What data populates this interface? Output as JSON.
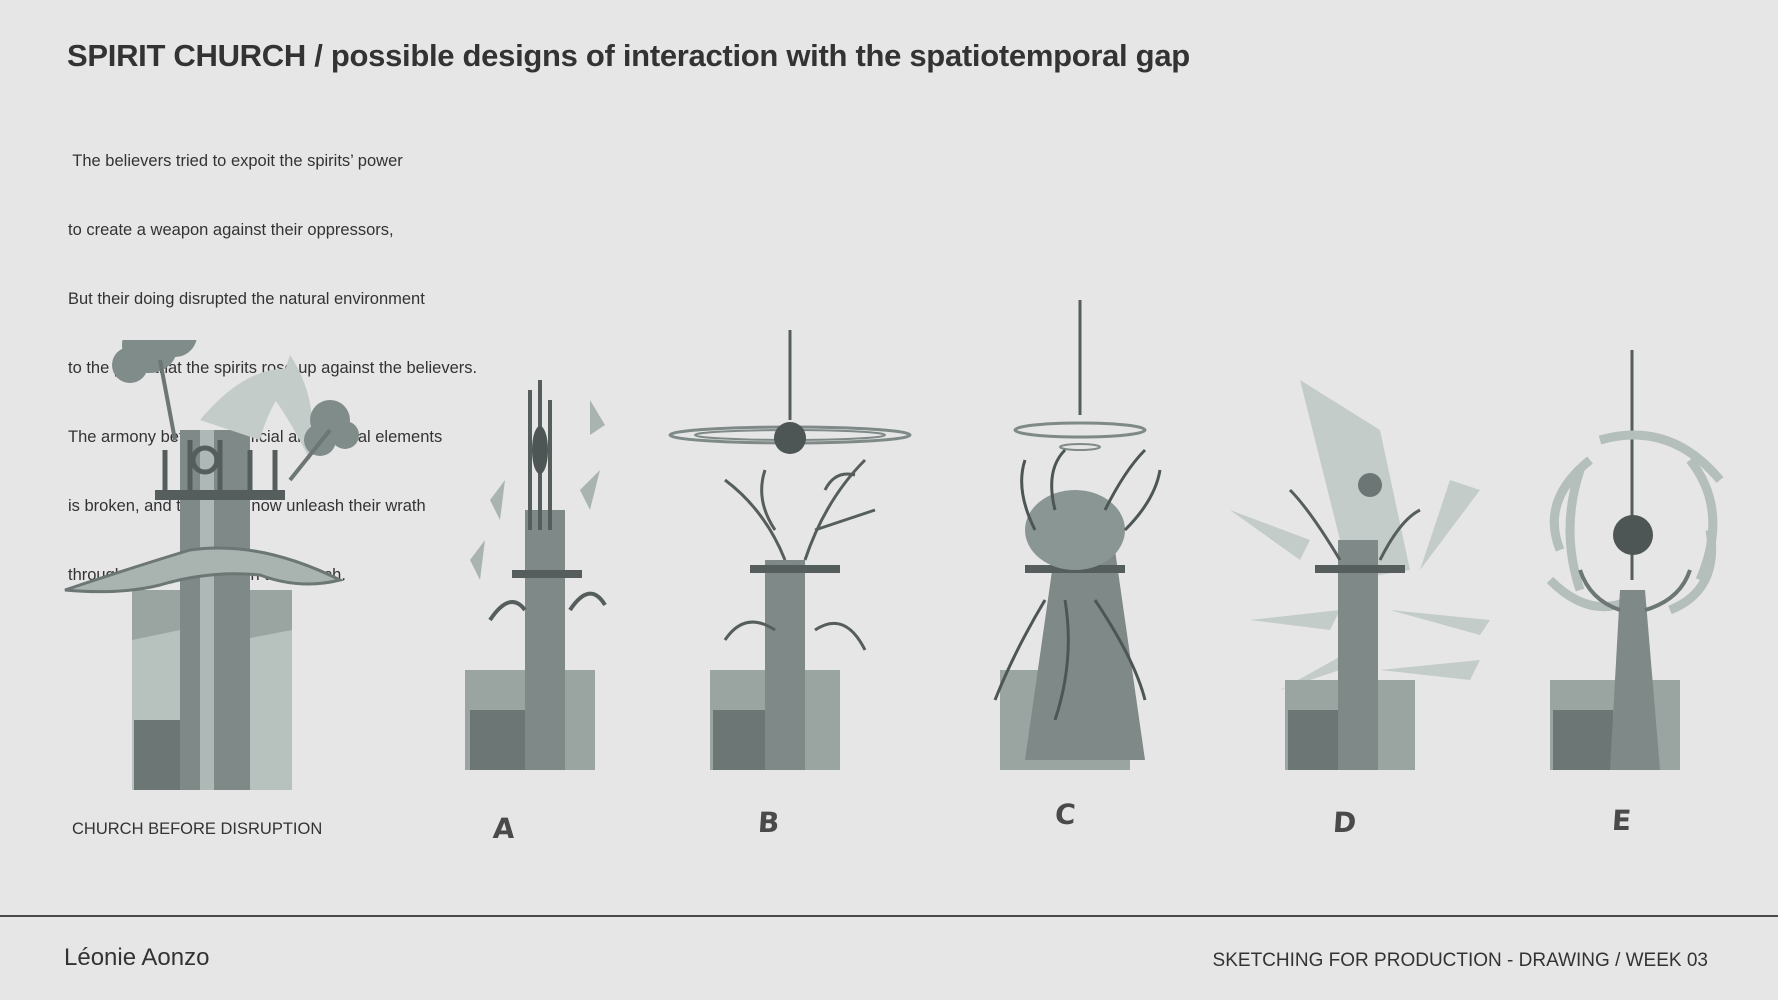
{
  "title": "SPIRIT CHURCH / possible designs of interaction with the spatiotemporal gap",
  "description": [
    " The believers tried to expoit the spirits’ power",
    "to create a weapon against their oppressors,",
    "But their doing disrupted the natural environment",
    "to the point that the spirits rose up against the believers.",
    "The armony between artificial and natural elements",
    "is broken, and the spirits now unleash their wrath",
    "through a temporal fault in the church."
  ],
  "sketches": [
    {
      "label": "CHURCH BEFORE DISRUPTION"
    },
    {
      "label": "A"
    },
    {
      "label": "B"
    },
    {
      "label": "C"
    },
    {
      "label": "D"
    },
    {
      "label": "E"
    }
  ],
  "footer": {
    "author": "Léonie Aonzo",
    "course": "SKETCHING FOR PRODUCTION - DRAWING / WEEK 03"
  },
  "colors": {
    "background": "#e6e6e6",
    "sketch_light": "#b4bebb",
    "sketch_mid": "#8a9693",
    "sketch_dark": "#4d5654"
  }
}
